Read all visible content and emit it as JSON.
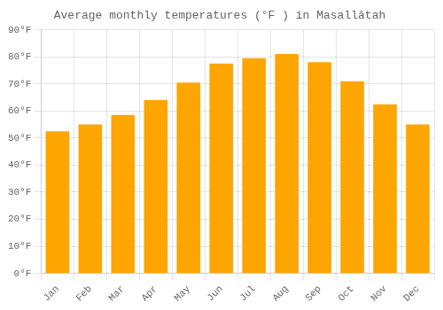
{
  "chart_data": {
    "type": "bar",
    "title": "Average monthly temperatures (°F ) in Masallātah",
    "categories": [
      "Jan",
      "Feb",
      "Mar",
      "Apr",
      "May",
      "Jun",
      "Jul",
      "Aug",
      "Sep",
      "Oct",
      "Nov",
      "Dec"
    ],
    "values": [
      52.5,
      55.0,
      58.5,
      64.0,
      70.5,
      77.5,
      79.5,
      81.0,
      78.0,
      71.0,
      62.5,
      55.0
    ],
    "color": "#FFA500",
    "ylim": [
      0,
      90
    ],
    "yticks": [
      {
        "value": 0,
        "label": "0°F"
      },
      {
        "value": 10,
        "label": "10°F"
      },
      {
        "value": 20,
        "label": "20°F"
      },
      {
        "value": 30,
        "label": "30°F"
      },
      {
        "value": 40,
        "label": "40°F"
      },
      {
        "value": 50,
        "label": "50°F"
      },
      {
        "value": 60,
        "label": "60°F"
      },
      {
        "value": 70,
        "label": "70°F"
      },
      {
        "value": 80,
        "label": "80°F"
      },
      {
        "value": 90,
        "label": "90°F"
      }
    ],
    "grid": true
  }
}
